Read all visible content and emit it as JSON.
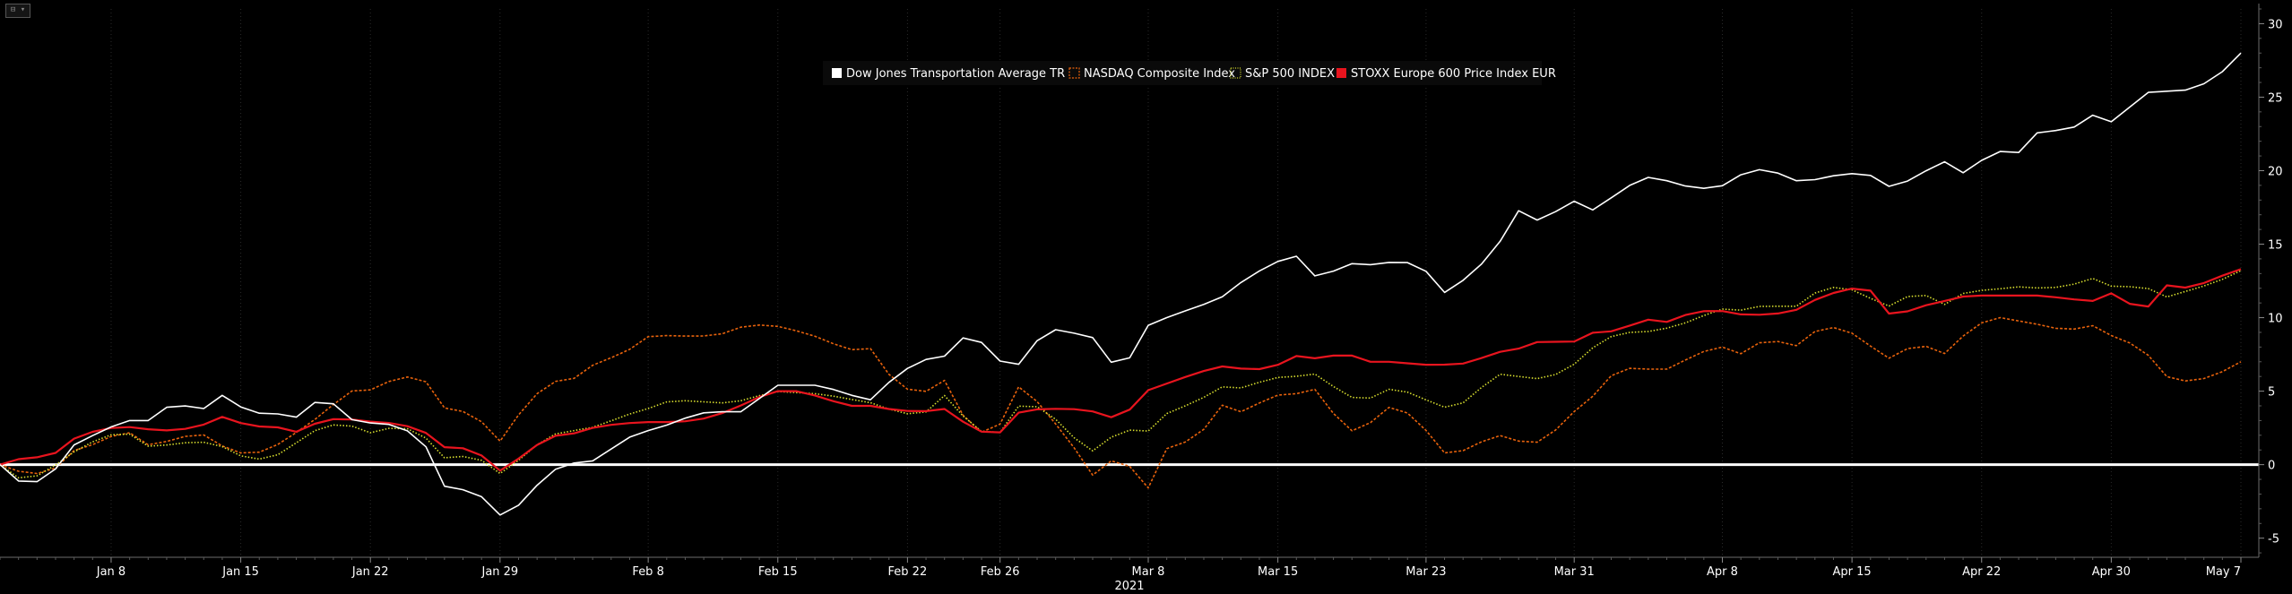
{
  "chart_data": {
    "type": "line",
    "year_label": "2021",
    "x_tick_labels": [
      "Jan 8",
      "Jan 15",
      "Jan 22",
      "Jan 29",
      "Feb 8",
      "Feb 15",
      "Feb 22",
      "Feb 26",
      "Mar 8",
      "Mar 15",
      "Mar 23",
      "Mar 31",
      "Apr 8",
      "Apr 15",
      "Apr 22",
      "Apr 30",
      "May 7"
    ],
    "x_tick_index": [
      6,
      13,
      20,
      27,
      35,
      42,
      49,
      54,
      62,
      69,
      77,
      85,
      93,
      100,
      107,
      114,
      121
    ],
    "y_ticks": [
      -5,
      0,
      5,
      10,
      15,
      20,
      25,
      30
    ],
    "ylim": [
      -6.3,
      31
    ],
    "legend_position": "top-center",
    "series": [
      {
        "name": "Dow Jones Transportation Average TR",
        "color": "#ffffff",
        "style": "solid",
        "key": [
          0,
          -1.5,
          -0.8,
          1.4,
          2.2,
          3.0,
          3.0,
          4.3,
          3.6,
          4.8,
          3.5,
          3.5,
          3.2,
          4.8,
          3.1,
          2.8,
          2.7,
          1.6,
          -2.0,
          -1.5,
          -3.5,
          -2.6,
          -0.5,
          0.1,
          0.3,
          1.7,
          2.3,
          2.8,
          3.5,
          3.6,
          3.6,
          5.4,
          5.4,
          5.4,
          4.8,
          4.4,
          6.1,
          7.1,
          7.4,
          9.2,
          7.1,
          6.8,
          9.3,
          9.0,
          8.6,
          6.0,
          9.4,
          10.1,
          10.7,
          11.3,
          12.6,
          13.6,
          14.3,
          12.5,
          13.7,
          13.6,
          13.8,
          13.7,
          11.7,
          12.8,
          14.5,
          17.3,
          16.4,
          18.1,
          17.3,
          18.5,
          19.6,
          19.3,
          18.8,
          18.8,
          19.8,
          20.2,
          19.3,
          19.4,
          19.8,
          19.8,
          18.8,
          19.6,
          20.7,
          19.7,
          21.4,
          21.1,
          22.9,
          22.6,
          23.8,
          23.2,
          25.3,
          25.4,
          25.5,
          26.3,
          28.0
        ]
      },
      {
        "name": "NASDAQ Composite Index",
        "color": "#e8620c",
        "style": "dashed",
        "key": [
          0,
          -0.6,
          -0.6,
          1.0,
          1.5,
          2.4,
          1.3,
          1.7,
          2.2,
          1.2,
          0.6,
          1.2,
          2.3,
          3.5,
          5.0,
          5.1,
          6.0,
          5.9,
          3.5,
          3.7,
          1.4,
          3.8,
          5.6,
          5.8,
          7.0,
          7.5,
          8.7,
          8.8,
          8.7,
          8.9,
          9.5,
          9.5,
          9.1,
          8.6,
          7.8,
          7.9,
          5.4,
          4.8,
          5.8,
          2.2,
          2.2,
          5.6,
          3.6,
          1.5,
          -1.0,
          1.0,
          -2.0,
          1.6,
          1.5,
          4.1,
          3.5,
          4.7,
          4.8,
          5.2,
          2.1,
          2.8,
          4.2,
          2.9,
          0.8,
          1.0,
          2.1,
          1.6,
          1.5,
          3.3,
          4.7,
          6.6,
          6.5,
          6.5,
          7.4,
          8.1,
          7.5,
          8.7,
          7.9,
          9.2,
          9.4,
          8.2,
          7.1,
          8.4,
          7.4,
          9.0,
          10.1,
          9.8,
          9.5,
          9.1,
          9.5,
          8.6,
          8.0,
          6.0,
          5.6,
          6.1,
          7.0
        ]
      },
      {
        "name": "S&P 500 INDEX",
        "color": "#d8de2e",
        "style": "dotted",
        "key": [
          0,
          -1.2,
          -0.3,
          0.9,
          1.8,
          2.3,
          1.2,
          1.4,
          1.6,
          1.2,
          0.3,
          0.5,
          1.6,
          2.7,
          2.7,
          2.1,
          2.7,
          2.0,
          0.2,
          0.8,
          -0.7,
          0.5,
          2.0,
          2.3,
          2.6,
          3.3,
          3.8,
          4.4,
          4.3,
          4.2,
          4.4,
          5.0,
          4.9,
          4.8,
          4.5,
          4.2,
          3.6,
          3.3,
          4.8,
          2.6,
          1.8,
          4.2,
          3.8,
          2.0,
          0.8,
          2.5,
          2.1,
          3.7,
          4.2,
          5.3,
          5.2,
          5.9,
          6.0,
          6.2,
          4.6,
          4.5,
          5.3,
          4.6,
          3.9,
          4.3,
          6.2,
          6.0,
          5.8,
          6.5,
          8.0,
          9.0,
          9.0,
          9.3,
          9.8,
          10.6,
          10.5,
          10.9,
          10.6,
          11.8,
          12.2,
          11.4,
          10.7,
          11.9,
          10.8,
          11.8,
          11.9,
          12.1,
          12.0,
          12.1,
          12.7,
          12.0,
          12.2,
          11.4,
          11.9,
          12.4,
          13.2
        ]
      },
      {
        "name": "STOXX Europe 600 Price Index EUR",
        "color": "#e8141e",
        "style": "solid",
        "key": [
          0,
          0.5,
          0.5,
          1.8,
          2.4,
          2.6,
          2.4,
          2.3,
          2.6,
          3.3,
          2.6,
          2.6,
          2.2,
          3.1,
          3.1,
          2.9,
          2.8,
          2.3,
          1.0,
          1.2,
          -0.5,
          0.6,
          1.9,
          2.1,
          2.6,
          2.8,
          2.9,
          2.9,
          3.0,
          3.5,
          4.2,
          5.0,
          5.0,
          4.6,
          4.0,
          4.0,
          3.7,
          3.6,
          3.8,
          2.5,
          1.9,
          3.7,
          3.8,
          3.8,
          3.6,
          3.0,
          5.0,
          5.6,
          6.2,
          6.7,
          6.5,
          6.5,
          7.4,
          7.2,
          7.6,
          7.0,
          7.0,
          6.8,
          6.8,
          6.9,
          7.6,
          7.9,
          8.5,
          8.2,
          9.0,
          9.1,
          9.9,
          9.7,
          10.4,
          10.5,
          10.2,
          10.2,
          10.4,
          11.3,
          11.9,
          12.1,
          10.0,
          10.7,
          11.1,
          11.5,
          11.5,
          11.5,
          11.5,
          11.3,
          11.1,
          11.8,
          10.2,
          12.2,
          12.0,
          12.7,
          13.3
        ]
      }
    ]
  },
  "toolbar": {
    "corner_label": "⊟ ▾"
  }
}
